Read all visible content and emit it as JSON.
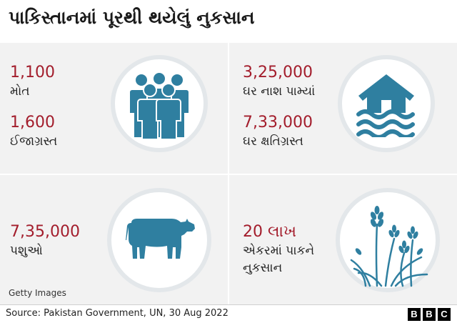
{
  "title": "પાકિસ્તાનમાં પૂરથી થયેલું નુકસાન",
  "colors": {
    "accent_number": "#a31d2c",
    "icon": "#2f7fa0",
    "panel_bg": "#f2f2f2",
    "circle_ring": "#e3e7ea"
  },
  "quadrants": {
    "people": {
      "icon": "people-icon",
      "stats": [
        {
          "number": "1,100",
          "label": "મોત"
        },
        {
          "number": "1,600",
          "label": "ઈજાગ્રસ્ત"
        }
      ]
    },
    "houses": {
      "icon": "flooded-house-icon",
      "stats": [
        {
          "number": "3,25,000",
          "label": "ઘર નાશ પામ્યાં"
        },
        {
          "number": "7,33,000",
          "label": "ઘર ક્ષતિગ્રસ્ત"
        }
      ]
    },
    "livestock": {
      "icon": "cow-icon",
      "stats": [
        {
          "number": "7,35,000",
          "label": "પશુઓ"
        }
      ]
    },
    "crops": {
      "icon": "crops-icon",
      "stats": [
        {
          "number": "20 લાખ",
          "label": "એકરમાં પાકને",
          "label2": "નુકસાન"
        }
      ]
    }
  },
  "credit": "Getty Images",
  "source": "Source: Pakistan Government, UN, 30 Aug 2022",
  "logo": [
    "B",
    "B",
    "C"
  ]
}
